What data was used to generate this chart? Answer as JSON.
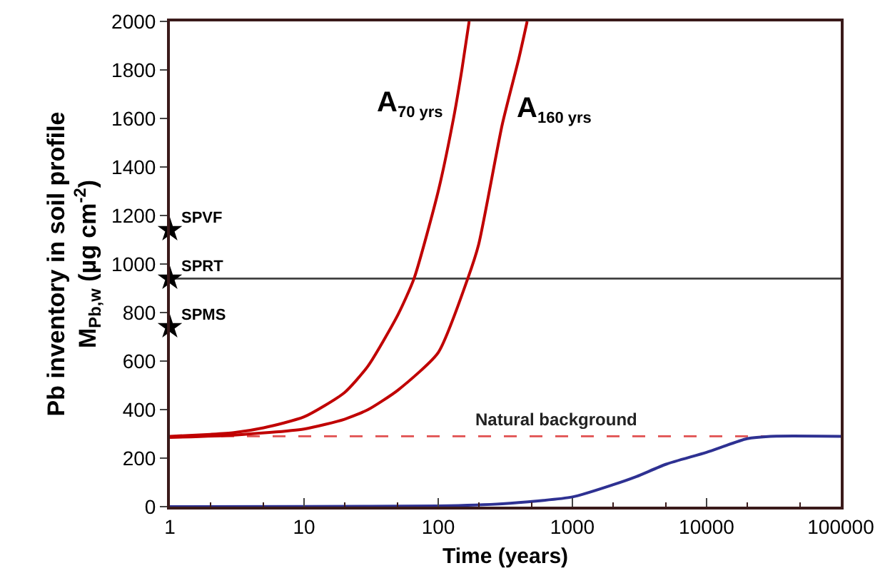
{
  "chart_data": {
    "type": "line",
    "xlabel": "Time (years)",
    "ylabel": "Pb inventory in soil profile\nM$_{Pb,w}$ (µg cm$^{-2}$)",
    "series": [
      {
        "name": "A$_{70 yrs}$",
        "color": "#c00000",
        "x": [
          1,
          2,
          3,
          5,
          10,
          20,
          30,
          50,
          66,
          100,
          130,
          150,
          170
        ],
        "values": [
          290,
          298,
          305,
          325,
          370,
          470,
          580,
          790,
          940,
          1300,
          1600,
          1800,
          2000
        ]
      },
      {
        "name": "A$_{160 yrs}$",
        "color": "#c00000",
        "x": [
          1,
          3,
          10,
          20,
          30,
          50,
          100,
          166,
          200,
          300,
          400,
          460
        ],
        "values": [
          285,
          295,
          320,
          360,
          400,
          480,
          635,
          940,
          1080,
          1575,
          1850,
          2000
        ]
      },
      {
        "color": "#2e3192",
        "x": [
          1,
          10,
          100,
          300,
          1000,
          2000,
          3000,
          5000,
          10000,
          20000,
          30000,
          100000
        ],
        "values": [
          0,
          1,
          3,
          12,
          40,
          90,
          124,
          175,
          224,
          280,
          290,
          290
        ]
      },
      {
        "name": "SPVF",
        "type": "scatter",
        "marker": "star",
        "color": "#000000",
        "x": [
          1
        ],
        "values": [
          1140
        ]
      },
      {
        "name": "SPRT",
        "type": "scatter",
        "marker": "star",
        "color": "#000000",
        "x": [
          1
        ],
        "values": [
          940
        ]
      },
      {
        "name": "SPMS",
        "type": "scatter",
        "marker": "star",
        "color": "#000000",
        "x": [
          1
        ],
        "values": [
          740
        ]
      }
    ],
    "log": "x",
    "xlim": [
      1,
      100000
    ],
    "xticks": [
      1,
      10,
      100,
      1000,
      10000,
      100000
    ],
    "ylim": [
      0,
      2000
    ],
    "yticks": [
      0,
      200,
      400,
      600,
      800,
      1000,
      1200,
      1400,
      1600,
      1800,
      2000
    ],
    "ref_lines": [
      {
        "axis": "y",
        "value": 940,
        "color": "#404040",
        "line_style": "solid"
      },
      {
        "axis": "y",
        "value": 290,
        "color": "#e05050",
        "line_style": "dashed",
        "label": "Natural background"
      }
    ],
    "grid": false
  }
}
